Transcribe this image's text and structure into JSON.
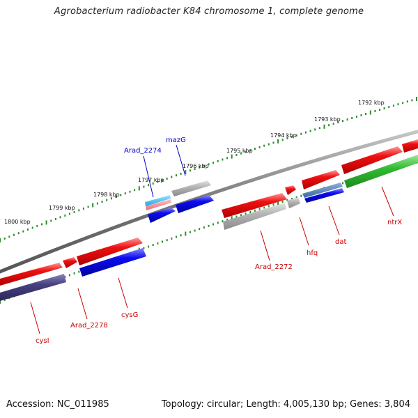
{
  "title": "Agrobacterium radiobacter K84 chromosome 1, complete genome",
  "footer": {
    "accession": "Accession: NC_011985",
    "summary": "Topology: circular; Length: 4,005,130 bp; Genes: 3,804"
  },
  "colors": {
    "backbone": "#777777",
    "tick": "#2e8b2e",
    "label_forward": "#0000cc",
    "label_reverse": "#cc0000",
    "red": "#ee1111",
    "blue": "#0c0cee",
    "gray": "#b5b5b5",
    "green": "#33bb33",
    "navy": "#46407e",
    "cyan": "#22b8e8",
    "pink": "#f08898",
    "steel": "#4a78b0"
  },
  "scale_labels": [
    "1800 kbp",
    "1799 kbp",
    "1798 kbp",
    "1797 kbp",
    "1796 kbp",
    "1795 kbp",
    "1794 kbp",
    "1793 kbp",
    "1792 kbp"
  ],
  "gene_labels": [
    {
      "name": "Arad_2274",
      "strand": "forward"
    },
    {
      "name": "mazG",
      "strand": "forward"
    },
    {
      "name": "Arad_2272",
      "strand": "reverse"
    },
    {
      "name": "hfq",
      "strand": "reverse"
    },
    {
      "name": "dat",
      "strand": "reverse"
    },
    {
      "name": "ntrX",
      "strand": "reverse"
    },
    {
      "name": "cysI",
      "strand": "reverse"
    },
    {
      "name": "Arad_2278",
      "strand": "reverse"
    },
    {
      "name": "cysG",
      "strand": "reverse"
    }
  ]
}
